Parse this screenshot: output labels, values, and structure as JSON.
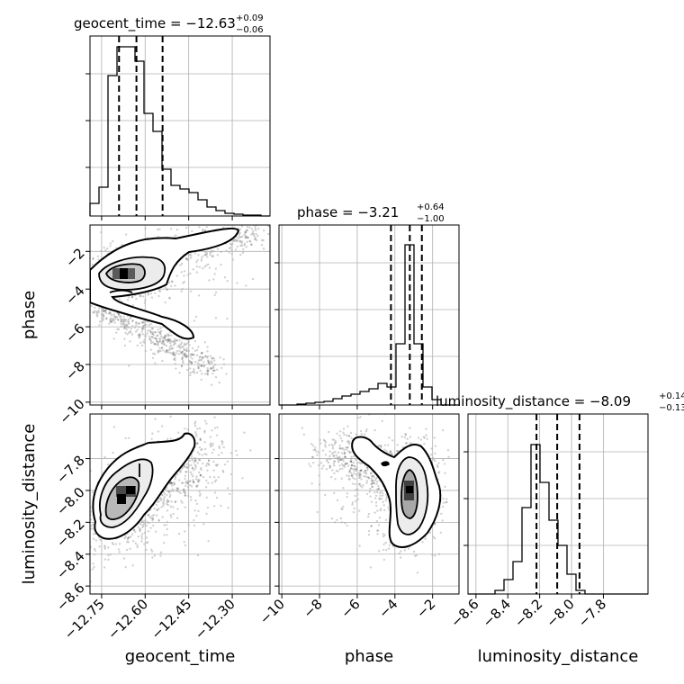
{
  "chart_data": {
    "type": "corner",
    "parameters": [
      "geocent_time",
      "phase",
      "luminosity_distance"
    ],
    "ranges": {
      "geocent_time": [
        -12.79,
        -12.17
      ],
      "phase": [
        -10.15,
        -0.6
      ],
      "luminosity_distance": [
        -8.65,
        -7.52
      ]
    },
    "ticks": {
      "geocent_time": [
        "-12.75",
        "-12.60",
        "-12.45",
        "-12.30"
      ],
      "phase": [
        "-10",
        "-8",
        "-6",
        "-4",
        "-2"
      ],
      "luminosity_distance": [
        "-8.6",
        "-8.4",
        "-8.2",
        "-8.0",
        "-7.8"
      ]
    },
    "tick_values": {
      "geocent_time": [
        -12.75,
        -12.6,
        -12.45,
        -12.3
      ],
      "phase": [
        -10,
        -8,
        -6,
        -4,
        -2
      ],
      "luminosity_distance": [
        -8.6,
        -8.4,
        -8.2,
        -8.0,
        -7.8
      ]
    },
    "titles": {
      "geocent_time": {
        "label": "geocent_time = −12.63",
        "plus": "+0.09",
        "minus": "−0.06"
      },
      "phase": {
        "label": "phase = −3.21",
        "plus": "+0.64",
        "minus": "−1.00"
      },
      "luminosity_distance": {
        "label": "luminosity_distance = −8.09",
        "plus": "+0.14",
        "minus": "−0.13"
      }
    },
    "quantiles": {
      "geocent_time": [
        -12.69,
        -12.63,
        -12.54
      ],
      "phase": [
        -4.21,
        -3.21,
        -2.57
      ],
      "luminosity_distance": [
        -8.22,
        -8.09,
        -7.95
      ]
    },
    "histograms": {
      "geocent_time": {
        "edges_start": -12.79,
        "bin_width": 0.031,
        "counts": [
          0.07,
          0.16,
          0.78,
          0.94,
          0.94,
          0.86,
          0.57,
          0.47,
          0.26,
          0.17,
          0.15,
          0.13,
          0.09,
          0.05,
          0.03,
          0.015,
          0.01,
          0.005,
          0.005,
          0.0
        ]
      },
      "phase": {
        "edges_start": -10.15,
        "bin_width": 0.4775,
        "counts": [
          0.0,
          0.0,
          0.005,
          0.01,
          0.015,
          0.02,
          0.035,
          0.05,
          0.06,
          0.075,
          0.09,
          0.12,
          0.1,
          0.34,
          0.89,
          0.34,
          0.1,
          0.03,
          0.0,
          0.0
        ]
      },
      "luminosity_distance": {
        "edges_start": -8.65,
        "bin_width": 0.0565,
        "counts": [
          0.0,
          0.0,
          0.0,
          0.02,
          0.08,
          0.18,
          0.48,
          0.83,
          0.62,
          0.41,
          0.27,
          0.11,
          0.02,
          0.0,
          0.0,
          0.0,
          0.0,
          0.0,
          0.0,
          0.0
        ]
      }
    },
    "grid": true
  }
}
